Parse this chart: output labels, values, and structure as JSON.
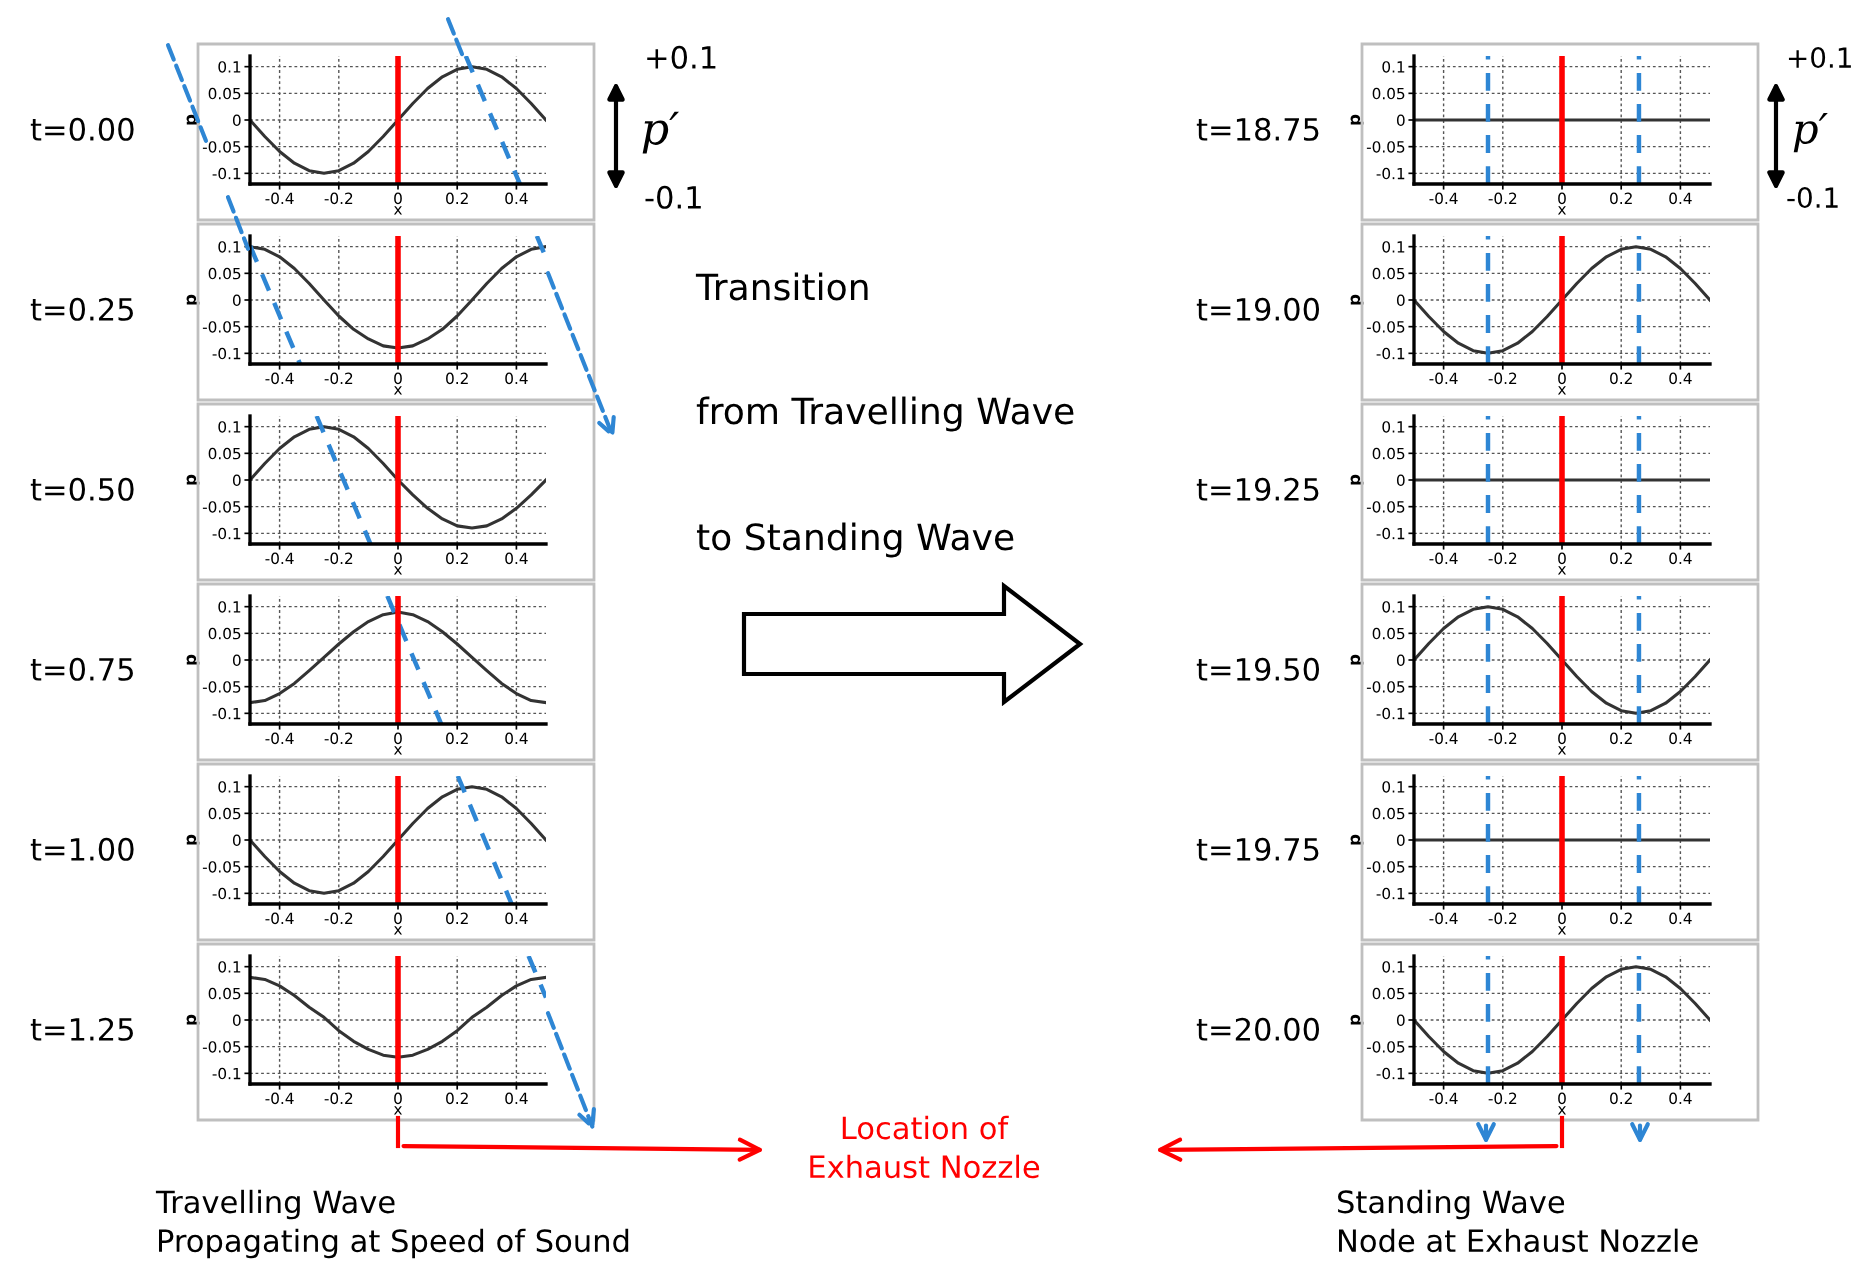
{
  "chart_data": [
    {
      "type": "line",
      "title": "t=0.00",
      "xlabel": "x",
      "ylabel": "p",
      "x": [
        -0.5,
        -0.45,
        -0.4,
        -0.35,
        -0.3,
        -0.25,
        -0.2,
        -0.15,
        -0.1,
        -0.05,
        0,
        0.05,
        0.1,
        0.15,
        0.2,
        0.25,
        0.3,
        0.35,
        0.4,
        0.45,
        0.5
      ],
      "series": [
        {
          "color": "#333333",
          "values": [
            0,
            -0.031,
            -0.059,
            -0.081,
            -0.095,
            -0.1,
            -0.095,
            -0.081,
            -0.059,
            -0.031,
            0,
            0.031,
            0.059,
            0.081,
            0.095,
            0.1,
            0.095,
            0.081,
            0.059,
            0.031,
            0
          ]
        },
        {
          "color": "#2e86d4",
          "line_style": "dashed",
          "x": [
            0.229,
            0.412
          ],
          "values": [
            0.12,
            -0.12
          ]
        }
      ],
      "xlim": [
        -0.5,
        0.5
      ],
      "ylim": [
        -0.12,
        0.12
      ],
      "xticks": [
        -0.4,
        -0.2,
        0,
        0.2,
        0.4
      ],
      "yticks": [
        -0.1,
        -0.05,
        0,
        0.05,
        0.1
      ],
      "grid": true,
      "line_style": "solid",
      "ref_lines": [
        {
          "axis": "x",
          "value": 0,
          "color": "#ff0000",
          "line_style": "solid"
        }
      ],
      "annotations": [
        "+0.1",
        "p′",
        "-0.1",
        "Transition",
        "from Travelling Wave",
        "to Standing Wave"
      ]
    },
    {
      "type": "line",
      "title": "t=18.75",
      "xlabel": "x",
      "ylabel": "p",
      "x": [
        -0.5,
        0,
        0.5
      ],
      "series": [
        {
          "color": "#333333",
          "values": [
            0,
            0,
            0
          ]
        }
      ],
      "xlim": [
        -0.5,
        0.5
      ],
      "ylim": [
        -0.12,
        0.12
      ],
      "xticks": [
        -0.4,
        -0.2,
        0,
        0.2,
        0.4
      ],
      "yticks": [
        -0.1,
        -0.05,
        0,
        0.05,
        0.1
      ],
      "grid": true,
      "line_style": "solid",
      "ref_lines": [
        {
          "axis": "x",
          "value": 0,
          "color": "#ff0000",
          "line_style": "solid"
        },
        {
          "axis": "x",
          "value": -0.25,
          "color": "#2e86d4",
          "line_style": "dashed"
        },
        {
          "axis": "x",
          "value": 0.26,
          "color": "#2e86d4",
          "line_style": "dashed"
        }
      ],
      "annotations": [
        "+0.1",
        "p′",
        "-0.1"
      ]
    },
    {
      "type": "line",
      "title": "t=0.25",
      "xlabel": "x",
      "ylabel": "p",
      "x": [
        -0.5,
        -0.45,
        -0.4,
        -0.35,
        -0.3,
        -0.25,
        -0.2,
        -0.15,
        -0.1,
        -0.05,
        0,
        0.05,
        0.1,
        0.15,
        0.2,
        0.25,
        0.3,
        0.35,
        0.4,
        0.45,
        0.5
      ],
      "series": [
        {
          "color": "#333333",
          "values": [
            0.1,
            0.095,
            0.081,
            0.059,
            0.031,
            0,
            -0.03,
            -0.055,
            -0.073,
            -0.086,
            -0.09,
            -0.086,
            -0.073,
            -0.055,
            -0.03,
            0,
            0.031,
            0.059,
            0.081,
            0.095,
            0.1
          ]
        },
        {
          "color": "#2e86d4",
          "line_style": "dashed",
          "x": [
            -0.5,
            -0.331
          ],
          "values": [
            0.102,
            -0.12
          ]
        },
        {
          "color": "#2e86d4",
          "line_style": "dashed",
          "x": [
            0.469,
            0.5
          ],
          "values": [
            0.12,
            0.079
          ]
        }
      ],
      "xlim": [
        -0.5,
        0.5
      ],
      "ylim": [
        -0.12,
        0.12
      ],
      "xticks": [
        -0.4,
        -0.2,
        0,
        0.2,
        0.4
      ],
      "yticks": [
        -0.1,
        -0.05,
        0,
        0.05,
        0.1
      ],
      "grid": true,
      "line_style": "solid",
      "ref_lines": [
        {
          "axis": "x",
          "value": 0,
          "color": "#ff0000",
          "line_style": "solid"
        }
      ]
    },
    {
      "type": "line",
      "title": "t=19.00",
      "xlabel": "x",
      "ylabel": "p",
      "x": [
        -0.5,
        -0.45,
        -0.4,
        -0.35,
        -0.3,
        -0.25,
        -0.2,
        -0.15,
        -0.1,
        -0.05,
        0,
        0.05,
        0.1,
        0.15,
        0.2,
        0.25,
        0.3,
        0.35,
        0.4,
        0.45,
        0.5
      ],
      "series": [
        {
          "color": "#333333",
          "values": [
            0,
            -0.031,
            -0.059,
            -0.081,
            -0.095,
            -0.1,
            -0.095,
            -0.081,
            -0.059,
            -0.031,
            0,
            0.031,
            0.059,
            0.081,
            0.095,
            0.1,
            0.095,
            0.081,
            0.059,
            0.031,
            0
          ]
        }
      ],
      "xlim": [
        -0.5,
        0.5
      ],
      "ylim": [
        -0.12,
        0.12
      ],
      "xticks": [
        -0.4,
        -0.2,
        0,
        0.2,
        0.4
      ],
      "yticks": [
        -0.1,
        -0.05,
        0,
        0.05,
        0.1
      ],
      "grid": true,
      "line_style": "solid",
      "ref_lines": [
        {
          "axis": "x",
          "value": 0,
          "color": "#ff0000",
          "line_style": "solid"
        },
        {
          "axis": "x",
          "value": -0.25,
          "color": "#2e86d4",
          "line_style": "dashed"
        },
        {
          "axis": "x",
          "value": 0.26,
          "color": "#2e86d4",
          "line_style": "dashed"
        }
      ]
    },
    {
      "type": "line",
      "title": "t=0.50",
      "xlabel": "x",
      "ylabel": "p",
      "x": [
        -0.5,
        -0.45,
        -0.4,
        -0.35,
        -0.3,
        -0.25,
        -0.2,
        -0.15,
        -0.1,
        -0.05,
        0,
        0.05,
        0.1,
        0.15,
        0.2,
        0.25,
        0.3,
        0.35,
        0.4,
        0.45,
        0.5
      ],
      "series": [
        {
          "color": "#333333",
          "values": [
            0,
            0.031,
            0.059,
            0.081,
            0.095,
            0.1,
            0.095,
            0.081,
            0.059,
            0.031,
            0,
            -0.028,
            -0.053,
            -0.073,
            -0.086,
            -0.09,
            -0.086,
            -0.073,
            -0.053,
            -0.028,
            0
          ]
        },
        {
          "color": "#2e86d4",
          "line_style": "dashed",
          "x": [
            -0.275,
            -0.093
          ],
          "values": [
            0.12,
            -0.12
          ]
        }
      ],
      "xlim": [
        -0.5,
        0.5
      ],
      "ylim": [
        -0.12,
        0.12
      ],
      "xticks": [
        -0.4,
        -0.2,
        0,
        0.2,
        0.4
      ],
      "yticks": [
        -0.1,
        -0.05,
        0,
        0.05,
        0.1
      ],
      "grid": true,
      "line_style": "solid",
      "ref_lines": [
        {
          "axis": "x",
          "value": 0,
          "color": "#ff0000",
          "line_style": "solid"
        }
      ]
    },
    {
      "type": "line",
      "title": "t=19.25",
      "xlabel": "x",
      "ylabel": "p",
      "x": [
        -0.5,
        0,
        0.5
      ],
      "series": [
        {
          "color": "#333333",
          "values": [
            0,
            0,
            0
          ]
        }
      ],
      "xlim": [
        -0.5,
        0.5
      ],
      "ylim": [
        -0.12,
        0.12
      ],
      "xticks": [
        -0.4,
        -0.2,
        0,
        0.2,
        0.4
      ],
      "yticks": [
        -0.1,
        -0.05,
        0,
        0.05,
        0.1
      ],
      "grid": true,
      "line_style": "solid",
      "ref_lines": [
        {
          "axis": "x",
          "value": 0,
          "color": "#ff0000",
          "line_style": "solid"
        },
        {
          "axis": "x",
          "value": -0.25,
          "color": "#2e86d4",
          "line_style": "dashed"
        },
        {
          "axis": "x",
          "value": 0.26,
          "color": "#2e86d4",
          "line_style": "dashed"
        }
      ]
    },
    {
      "type": "line",
      "title": "t=0.75",
      "xlabel": "x",
      "ylabel": "p",
      "x": [
        -0.5,
        -0.45,
        -0.4,
        -0.35,
        -0.3,
        -0.25,
        -0.2,
        -0.15,
        -0.1,
        -0.05,
        0,
        0.05,
        0.1,
        0.15,
        0.2,
        0.25,
        0.3,
        0.35,
        0.4,
        0.45,
        0.5
      ],
      "series": [
        {
          "color": "#333333",
          "values": [
            -0.08,
            -0.076,
            -0.063,
            -0.044,
            -0.02,
            0.005,
            0.03,
            0.053,
            0.072,
            0.085,
            0.09,
            0.085,
            0.072,
            0.053,
            0.03,
            0.005,
            -0.02,
            -0.044,
            -0.063,
            -0.076,
            -0.08
          ]
        },
        {
          "color": "#2e86d4",
          "line_style": "dashed",
          "x": [
            -0.036,
            0.146
          ],
          "values": [
            0.12,
            -0.12
          ]
        }
      ],
      "xlim": [
        -0.5,
        0.5
      ],
      "ylim": [
        -0.12,
        0.12
      ],
      "xticks": [
        -0.4,
        -0.2,
        0,
        0.2,
        0.4
      ],
      "yticks": [
        -0.1,
        -0.05,
        0,
        0.05,
        0.1
      ],
      "grid": true,
      "line_style": "solid",
      "ref_lines": [
        {
          "axis": "x",
          "value": 0,
          "color": "#ff0000",
          "line_style": "solid"
        }
      ]
    },
    {
      "type": "line",
      "title": "t=19.50",
      "xlabel": "x",
      "ylabel": "p",
      "x": [
        -0.5,
        -0.45,
        -0.4,
        -0.35,
        -0.3,
        -0.25,
        -0.2,
        -0.15,
        -0.1,
        -0.05,
        0,
        0.05,
        0.1,
        0.15,
        0.2,
        0.25,
        0.3,
        0.35,
        0.4,
        0.45,
        0.5
      ],
      "series": [
        {
          "color": "#333333",
          "values": [
            0,
            0.031,
            0.059,
            0.081,
            0.095,
            0.1,
            0.095,
            0.081,
            0.059,
            0.031,
            0,
            -0.031,
            -0.059,
            -0.081,
            -0.095,
            -0.1,
            -0.095,
            -0.081,
            -0.059,
            -0.031,
            0
          ]
        }
      ],
      "xlim": [
        -0.5,
        0.5
      ],
      "ylim": [
        -0.12,
        0.12
      ],
      "xticks": [
        -0.4,
        -0.2,
        0,
        0.2,
        0.4
      ],
      "yticks": [
        -0.1,
        -0.05,
        0,
        0.05,
        0.1
      ],
      "grid": true,
      "line_style": "solid",
      "ref_lines": [
        {
          "axis": "x",
          "value": 0,
          "color": "#ff0000",
          "line_style": "solid"
        },
        {
          "axis": "x",
          "value": -0.25,
          "color": "#2e86d4",
          "line_style": "dashed"
        },
        {
          "axis": "x",
          "value": 0.26,
          "color": "#2e86d4",
          "line_style": "dashed"
        }
      ]
    },
    {
      "type": "line",
      "title": "t=1.00",
      "xlabel": "x",
      "ylabel": "p",
      "x": [
        -0.5,
        -0.45,
        -0.4,
        -0.35,
        -0.3,
        -0.25,
        -0.2,
        -0.15,
        -0.1,
        -0.05,
        0,
        0.05,
        0.1,
        0.15,
        0.2,
        0.25,
        0.3,
        0.35,
        0.4,
        0.45,
        0.5
      ],
      "series": [
        {
          "color": "#333333",
          "values": [
            0,
            -0.031,
            -0.059,
            -0.081,
            -0.095,
            -0.1,
            -0.095,
            -0.081,
            -0.059,
            -0.031,
            0,
            0.031,
            0.059,
            0.081,
            0.095,
            0.1,
            0.095,
            0.081,
            0.059,
            0.031,
            0
          ]
        },
        {
          "color": "#2e86d4",
          "line_style": "dashed",
          "x": [
            0.202,
            0.384
          ],
          "values": [
            0.12,
            -0.12
          ]
        }
      ],
      "xlim": [
        -0.5,
        0.5
      ],
      "ylim": [
        -0.12,
        0.12
      ],
      "xticks": [
        -0.4,
        -0.2,
        0,
        0.2,
        0.4
      ],
      "yticks": [
        -0.1,
        -0.05,
        0,
        0.05,
        0.1
      ],
      "grid": true,
      "line_style": "solid",
      "ref_lines": [
        {
          "axis": "x",
          "value": 0,
          "color": "#ff0000",
          "line_style": "solid"
        }
      ]
    },
    {
      "type": "line",
      "title": "t=19.75",
      "xlabel": "x",
      "ylabel": "p",
      "x": [
        -0.5,
        0,
        0.5
      ],
      "series": [
        {
          "color": "#333333",
          "values": [
            0,
            0,
            0
          ]
        }
      ],
      "xlim": [
        -0.5,
        0.5
      ],
      "ylim": [
        -0.12,
        0.12
      ],
      "xticks": [
        -0.4,
        -0.2,
        0,
        0.2,
        0.4
      ],
      "yticks": [
        -0.1,
        -0.05,
        0,
        0.05,
        0.1
      ],
      "grid": true,
      "line_style": "solid",
      "ref_lines": [
        {
          "axis": "x",
          "value": 0,
          "color": "#ff0000",
          "line_style": "solid"
        },
        {
          "axis": "x",
          "value": -0.25,
          "color": "#2e86d4",
          "line_style": "dashed"
        },
        {
          "axis": "x",
          "value": 0.26,
          "color": "#2e86d4",
          "line_style": "dashed"
        }
      ]
    },
    {
      "type": "line",
      "title": "t=1.25",
      "xlabel": "x",
      "ylabel": "p",
      "x": [
        -0.5,
        -0.45,
        -0.4,
        -0.35,
        -0.3,
        -0.25,
        -0.2,
        -0.15,
        -0.1,
        -0.05,
        0,
        0.05,
        0.1,
        0.15,
        0.2,
        0.25,
        0.3,
        0.35,
        0.4,
        0.45,
        0.5
      ],
      "series": [
        {
          "color": "#333333",
          "values": [
            0.08,
            0.076,
            0.064,
            0.046,
            0.024,
            0.005,
            -0.02,
            -0.04,
            -0.055,
            -0.066,
            -0.07,
            -0.066,
            -0.055,
            -0.04,
            -0.02,
            0.005,
            0.024,
            0.046,
            0.064,
            0.076,
            0.08
          ]
        },
        {
          "color": "#2e86d4",
          "line_style": "dashed",
          "x": [
            0.441,
            0.5
          ],
          "values": [
            0.12,
            0.042
          ]
        }
      ],
      "xlim": [
        -0.5,
        0.5
      ],
      "ylim": [
        -0.12,
        0.12
      ],
      "xticks": [
        -0.4,
        -0.2,
        0,
        0.2,
        0.4
      ],
      "yticks": [
        -0.1,
        -0.05,
        0,
        0.05,
        0.1
      ],
      "grid": true,
      "line_style": "solid",
      "ref_lines": [
        {
          "axis": "x",
          "value": 0,
          "color": "#ff0000",
          "line_style": "solid"
        }
      ],
      "annotations": [
        "Location of\nExhaust Nozzle",
        "Travelling Wave\nPropagating at Speed of Sound"
      ]
    },
    {
      "type": "line",
      "title": "t=20.00",
      "xlabel": "x",
      "ylabel": "p",
      "x": [
        -0.5,
        -0.45,
        -0.4,
        -0.35,
        -0.3,
        -0.25,
        -0.2,
        -0.15,
        -0.1,
        -0.05,
        0,
        0.05,
        0.1,
        0.15,
        0.2,
        0.25,
        0.3,
        0.35,
        0.4,
        0.45,
        0.5
      ],
      "series": [
        {
          "color": "#333333",
          "values": [
            0,
            -0.031,
            -0.059,
            -0.081,
            -0.095,
            -0.1,
            -0.095,
            -0.081,
            -0.059,
            -0.031,
            0,
            0.031,
            0.059,
            0.081,
            0.095,
            0.1,
            0.095,
            0.081,
            0.059,
            0.031,
            0
          ]
        }
      ],
      "xlim": [
        -0.5,
        0.5
      ],
      "ylim": [
        -0.12,
        0.12
      ],
      "xticks": [
        -0.4,
        -0.2,
        0,
        0.2,
        0.4
      ],
      "yticks": [
        -0.1,
        -0.05,
        0,
        0.05,
        0.1
      ],
      "grid": true,
      "line_style": "solid",
      "ref_lines": [
        {
          "axis": "x",
          "value": 0,
          "color": "#ff0000",
          "line_style": "solid"
        },
        {
          "axis": "x",
          "value": -0.25,
          "color": "#2e86d4",
          "line_style": "dashed"
        },
        {
          "axis": "x",
          "value": 0.26,
          "color": "#2e86d4",
          "line_style": "dashed"
        }
      ],
      "annotations": [
        "Standing Wave\nNode at Exhaust Nozzle"
      ]
    }
  ]
}
